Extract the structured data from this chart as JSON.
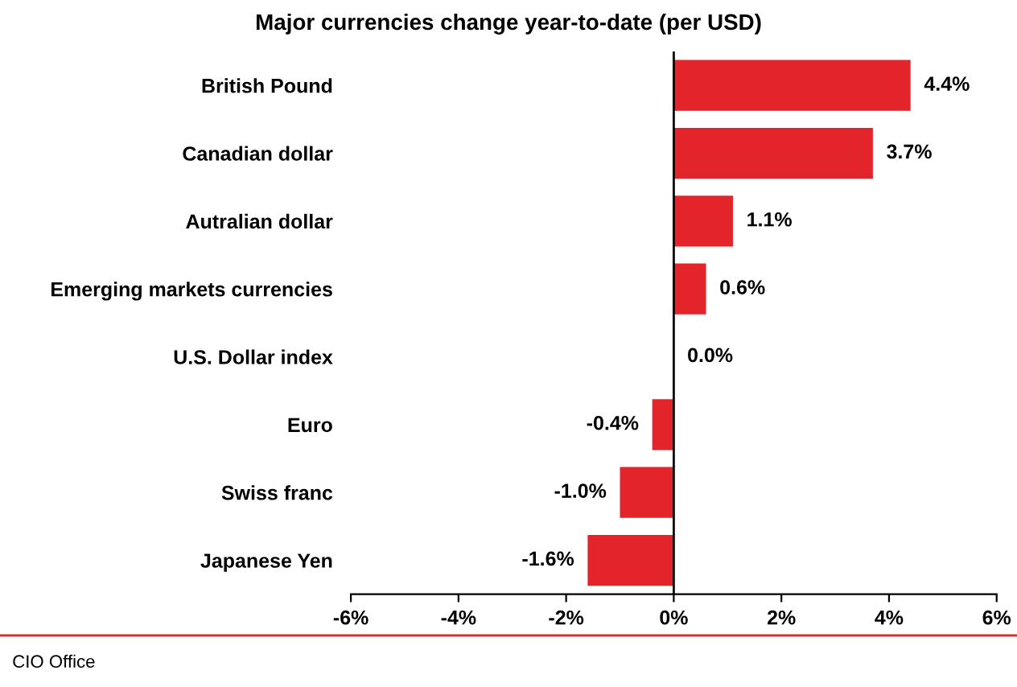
{
  "chart_data": {
    "type": "bar",
    "orientation": "horizontal",
    "title": "Major currencies change year-to-date (per USD)",
    "categories": [
      "British Pound",
      "Canadian dollar",
      "Autralian dollar",
      "Emerging markets currencies",
      "U.S. Dollar index",
      "Euro",
      "Swiss franc",
      "Japanese Yen"
    ],
    "values": [
      4.4,
      3.7,
      1.1,
      0.6,
      0.0,
      -0.4,
      -1.0,
      -1.6
    ],
    "colors": [
      "#e3242b",
      "#e3242b",
      "#e3242b",
      "#e3242b",
      "#1f3864",
      "#e3242b",
      "#e3242b",
      "#e3242b"
    ],
    "value_labels": [
      "4.4%",
      "3.7%",
      "1.1%",
      "0.6%",
      "0.0%",
      "-0.4%",
      "-1.0%",
      "-1.6%"
    ],
    "xlim": [
      -6,
      6
    ],
    "xticks": [
      {
        "value": -6,
        "label": "-6%"
      },
      {
        "value": -4,
        "label": "-4%"
      },
      {
        "value": -2,
        "label": "-2%"
      },
      {
        "value": 0,
        "label": "0%"
      },
      {
        "value": 2,
        "label": "2%"
      },
      {
        "value": 4,
        "label": "4%"
      },
      {
        "value": 6,
        "label": "6%"
      }
    ],
    "ref_lines": [
      {
        "axis": "x",
        "value": 0,
        "color": "#000000"
      }
    ],
    "annotations": [
      "CIO Office"
    ],
    "grid": false,
    "legend": false
  }
}
